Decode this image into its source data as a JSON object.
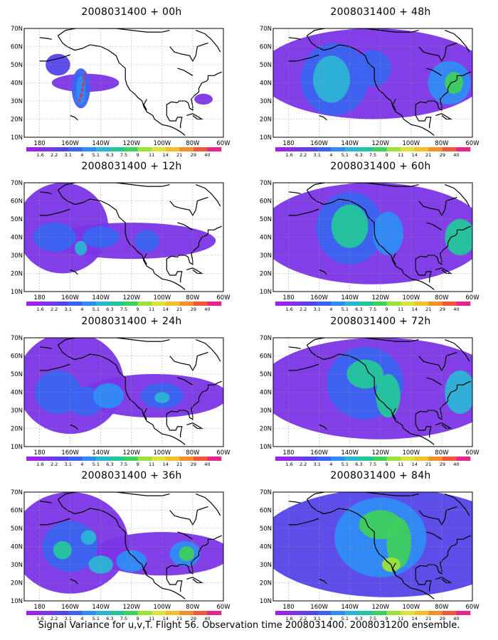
{
  "footer": "Signal Variance for u,v,T. Flight 56. Observation time 2008031400. 2008031200 ensemble.",
  "colorbar": {
    "labels": [
      "1.6",
      "2.2",
      "3.1",
      "4",
      "5.1",
      "6.3",
      "7.5",
      "9",
      "11",
      "14",
      "21",
      "29",
      "40"
    ],
    "colors": [
      "#a020f0",
      "#7b34e6",
      "#5544e8",
      "#3a64f0",
      "#2f8cf5",
      "#2bb4d6",
      "#22c69a",
      "#3ecf5e",
      "#9ce23a",
      "#dce23a",
      "#f2c02e",
      "#f0902a",
      "#ec5a3a",
      "#e8258e"
    ]
  },
  "chart_data": [
    {
      "type": "heatmap",
      "title": "2008031400 + 00h",
      "lead_hours": 0,
      "lat_ticks": [
        "10N",
        "20N",
        "30N",
        "40N",
        "50N",
        "60N",
        "70N"
      ],
      "lon_ticks": [
        "180",
        "160W",
        "140W",
        "120W",
        "100W",
        "80W",
        "60W"
      ],
      "blobs": [
        {
          "lon": -168,
          "lat": 50,
          "rx": 8,
          "ry": 6,
          "level": 2
        },
        {
          "lon": -150,
          "lat": 40,
          "rx": 22,
          "ry": 5,
          "level": 1
        },
        {
          "lon": -153,
          "lat": 37,
          "rx": 6,
          "ry": 11,
          "level": 3
        },
        {
          "lon": -153,
          "lat": 36,
          "rx": 3,
          "ry": 8,
          "level": 4
        },
        {
          "lon": -73,
          "lat": 31,
          "rx": 6,
          "ry": 3,
          "level": 1
        }
      ],
      "track_points": [
        [
          -150,
          45
        ],
        [
          -151,
          42
        ],
        [
          -151.5,
          39
        ],
        [
          -152,
          36
        ],
        [
          -153,
          33
        ],
        [
          -154,
          30
        ]
      ]
    },
    {
      "type": "heatmap",
      "title": "2008031400 + 12h",
      "lead_hours": 12,
      "lat_ticks": [
        "10N",
        "20N",
        "30N",
        "40N",
        "50N",
        "60N",
        "70N"
      ],
      "lon_ticks": [
        "180",
        "160W",
        "140W",
        "120W",
        "100W",
        "80W",
        "60W"
      ],
      "blobs": [
        {
          "lon": -165,
          "lat": 45,
          "rx": 30,
          "ry": 25,
          "level": 1
        },
        {
          "lon": -120,
          "lat": 38,
          "rx": 55,
          "ry": 10,
          "level": 1
        },
        {
          "lon": -170,
          "lat": 40,
          "rx": 14,
          "ry": 8,
          "level": 3
        },
        {
          "lon": -140,
          "lat": 40,
          "rx": 12,
          "ry": 6,
          "level": 3
        },
        {
          "lon": -153,
          "lat": 34,
          "rx": 4,
          "ry": 4,
          "level": 5
        },
        {
          "lon": -110,
          "lat": 38,
          "rx": 8,
          "ry": 6,
          "level": 3
        }
      ]
    },
    {
      "type": "heatmap",
      "title": "2008031400 + 24h",
      "lead_hours": 24,
      "lat_ticks": [
        "10N",
        "20N",
        "30N",
        "40N",
        "50N",
        "60N",
        "70N"
      ],
      "lon_ticks": [
        "180",
        "160W",
        "140W",
        "120W",
        "100W",
        "80W",
        "60W"
      ],
      "blobs": [
        {
          "lon": -160,
          "lat": 45,
          "rx": 35,
          "ry": 28,
          "level": 1
        },
        {
          "lon": -105,
          "lat": 38,
          "rx": 48,
          "ry": 12,
          "level": 1
        },
        {
          "lon": -168,
          "lat": 40,
          "rx": 15,
          "ry": 12,
          "level": 3
        },
        {
          "lon": -150,
          "lat": 35,
          "rx": 12,
          "ry": 8,
          "level": 3
        },
        {
          "lon": -135,
          "lat": 38,
          "rx": 10,
          "ry": 7,
          "level": 4
        },
        {
          "lon": -100,
          "lat": 38,
          "rx": 14,
          "ry": 7,
          "level": 3
        },
        {
          "lon": -100,
          "lat": 37,
          "rx": 5,
          "ry": 3,
          "level": 5
        }
      ]
    },
    {
      "type": "heatmap",
      "title": "2008031400 + 36h",
      "lead_hours": 36,
      "lat_ticks": [
        "10N",
        "20N",
        "30N",
        "40N",
        "50N",
        "60N",
        "70N"
      ],
      "lon_ticks": [
        "180",
        "160W",
        "140W",
        "120W",
        "100W",
        "80W",
        "60W"
      ],
      "blobs": [
        {
          "lon": -160,
          "lat": 42,
          "rx": 38,
          "ry": 28,
          "level": 1
        },
        {
          "lon": -100,
          "lat": 36,
          "rx": 45,
          "ry": 12,
          "level": 1
        },
        {
          "lon": -160,
          "lat": 40,
          "rx": 18,
          "ry": 14,
          "level": 3
        },
        {
          "lon": -165,
          "lat": 38,
          "rx": 6,
          "ry": 5,
          "level": 6
        },
        {
          "lon": -148,
          "lat": 45,
          "rx": 5,
          "ry": 4,
          "level": 5
        },
        {
          "lon": -140,
          "lat": 30,
          "rx": 8,
          "ry": 5,
          "level": 5
        },
        {
          "lon": -120,
          "lat": 32,
          "rx": 10,
          "ry": 6,
          "level": 4
        },
        {
          "lon": -85,
          "lat": 36,
          "rx": 10,
          "ry": 7,
          "level": 4
        },
        {
          "lon": -84,
          "lat": 36,
          "rx": 5,
          "ry": 4,
          "level": 7
        }
      ]
    },
    {
      "type": "heatmap",
      "title": "2008031400 + 48h",
      "lead_hours": 48,
      "lat_ticks": [
        "10N",
        "20N",
        "30N",
        "40N",
        "50N",
        "60N",
        "70N"
      ],
      "lon_ticks": [
        "180",
        "160W",
        "140W",
        "120W",
        "100W",
        "80W",
        "60W"
      ],
      "blobs": [
        {
          "lon": -125,
          "lat": 45,
          "rx": 75,
          "ry": 25,
          "level": 1
        },
        {
          "lon": -150,
          "lat": 42,
          "rx": 22,
          "ry": 20,
          "level": 3
        },
        {
          "lon": -152,
          "lat": 42,
          "rx": 12,
          "ry": 13,
          "level": 5
        },
        {
          "lon": -125,
          "lat": 48,
          "rx": 12,
          "ry": 10,
          "level": 3
        },
        {
          "lon": -75,
          "lat": 40,
          "rx": 14,
          "ry": 12,
          "level": 4
        },
        {
          "lon": -72,
          "lat": 40,
          "rx": 6,
          "ry": 6,
          "level": 7
        }
      ]
    },
    {
      "type": "heatmap",
      "title": "2008031400 + 60h",
      "lead_hours": 60,
      "lat_ticks": [
        "10N",
        "20N",
        "30N",
        "40N",
        "50N",
        "60N",
        "70N"
      ],
      "lon_ticks": [
        "180",
        "160W",
        "140W",
        "120W",
        "100W",
        "80W",
        "60W"
      ],
      "blobs": [
        {
          "lon": -125,
          "lat": 42,
          "rx": 75,
          "ry": 28,
          "level": 1
        },
        {
          "lon": -140,
          "lat": 45,
          "rx": 22,
          "ry": 20,
          "level": 3
        },
        {
          "lon": -140,
          "lat": 46,
          "rx": 12,
          "ry": 12,
          "level": 6
        },
        {
          "lon": -115,
          "lat": 42,
          "rx": 10,
          "ry": 12,
          "level": 4
        },
        {
          "lon": -68,
          "lat": 40,
          "rx": 10,
          "ry": 10,
          "level": 6
        }
      ]
    },
    {
      "type": "heatmap",
      "title": "2008031400 + 72h",
      "lead_hours": 72,
      "lat_ticks": [
        "10N",
        "20N",
        "30N",
        "40N",
        "50N",
        "60N",
        "70N"
      ],
      "lon_ticks": [
        "180",
        "160W",
        "140W",
        "120W",
        "100W",
        "80W",
        "60W"
      ],
      "blobs": [
        {
          "lon": -120,
          "lat": 42,
          "rx": 80,
          "ry": 28,
          "level": 1
        },
        {
          "lon": -130,
          "lat": 45,
          "rx": 25,
          "ry": 20,
          "level": 3
        },
        {
          "lon": -130,
          "lat": 50,
          "rx": 12,
          "ry": 8,
          "level": 6
        },
        {
          "lon": -115,
          "lat": 38,
          "rx": 8,
          "ry": 12,
          "level": 6
        },
        {
          "lon": -68,
          "lat": 40,
          "rx": 10,
          "ry": 12,
          "level": 5
        }
      ]
    },
    {
      "type": "heatmap",
      "title": "2008031400 + 84h",
      "lead_hours": 84,
      "lat_ticks": [
        "10N",
        "20N",
        "30N",
        "40N",
        "50N",
        "60N",
        "70N"
      ],
      "lon_ticks": [
        "180",
        "160W",
        "140W",
        "120W",
        "100W",
        "80W",
        "60W"
      ],
      "blobs": [
        {
          "lon": -115,
          "lat": 42,
          "rx": 85,
          "ry": 30,
          "level": 2
        },
        {
          "lon": -120,
          "lat": 45,
          "rx": 30,
          "ry": 22,
          "level": 4
        },
        {
          "lon": -120,
          "lat": 52,
          "rx": 14,
          "ry": 8,
          "level": 7
        },
        {
          "lon": -108,
          "lat": 42,
          "rx": 8,
          "ry": 14,
          "level": 7
        },
        {
          "lon": -113,
          "lat": 30,
          "rx": 6,
          "ry": 4,
          "level": 8
        }
      ]
    }
  ]
}
